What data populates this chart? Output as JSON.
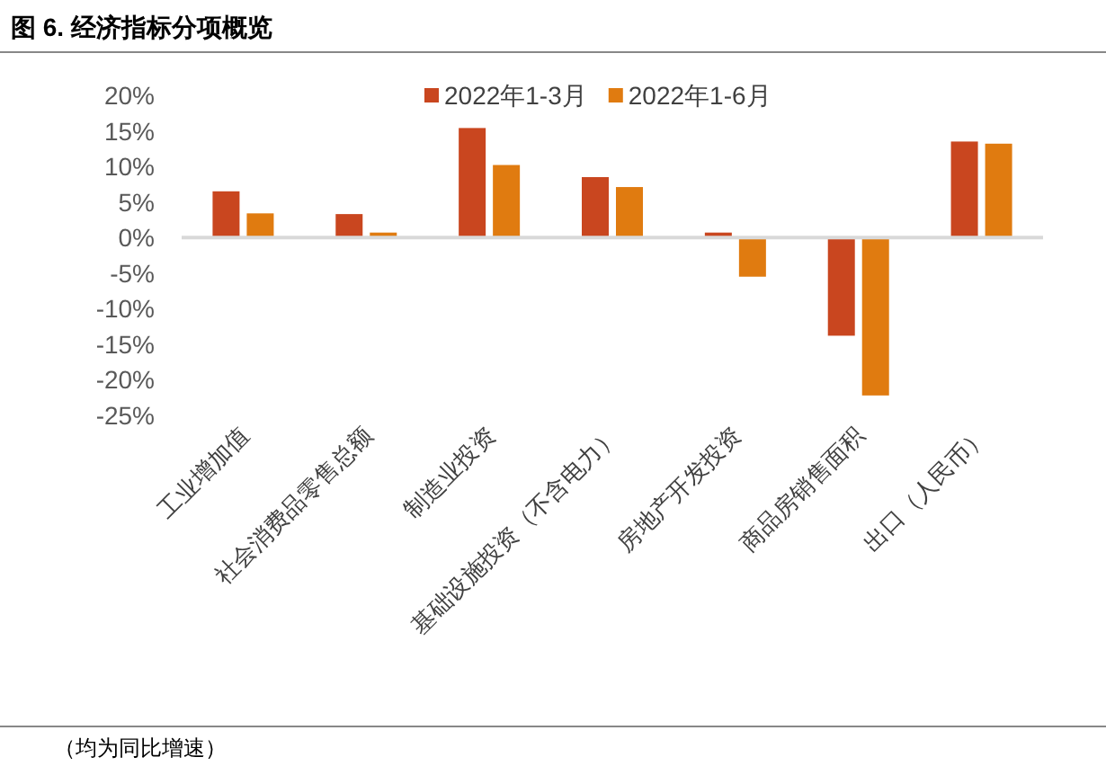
{
  "chart_data": {
    "type": "bar",
    "title": "图 6. 经济指标分项概览",
    "categories": [
      "工业增加值",
      "社会消费品零售总额",
      "制造业投资",
      "基础设施投资（不含电力）",
      "房地产开发投资",
      "商品房销售面积",
      "出口（人民币）"
    ],
    "series": [
      {
        "name": "2022年1-3月",
        "color": "#c9461f",
        "values": [
          6.5,
          3.3,
          15.4,
          8.5,
          0.7,
          -13.8,
          13.5
        ]
      },
      {
        "name": "2022年1-6月",
        "color": "#e07b10",
        "values": [
          3.4,
          0.7,
          10.2,
          7.1,
          -5.5,
          -22.2,
          13.2
        ]
      }
    ],
    "ylim": [
      -25,
      20
    ],
    "yticks": [
      {
        "value": 20,
        "label": "20%"
      },
      {
        "value": 15,
        "label": "15%"
      },
      {
        "value": 10,
        "label": "10%"
      },
      {
        "value": 5,
        "label": "5%"
      },
      {
        "value": 0,
        "label": "0%"
      },
      {
        "value": -5,
        "label": "-5%"
      },
      {
        "value": -10,
        "label": "-10%"
      },
      {
        "value": -15,
        "label": "-15%"
      },
      {
        "value": -20,
        "label": "-20%"
      },
      {
        "value": -25,
        "label": "-25%"
      }
    ],
    "legend": "top",
    "annotations": [
      "（均为同比增速）"
    ]
  }
}
